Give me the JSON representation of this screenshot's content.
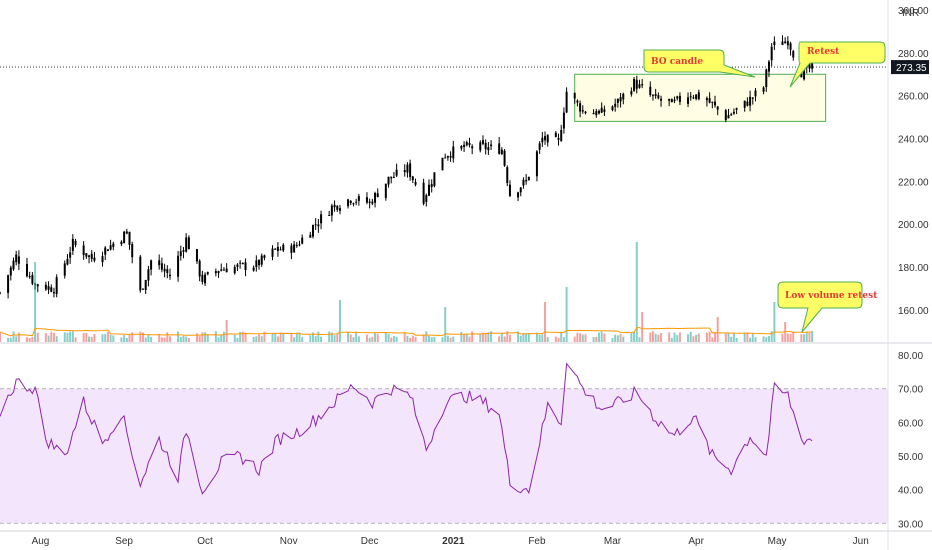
{
  "currency_label": "INR",
  "last_price": "273.35",
  "colors": {
    "up": "#26a69a",
    "down": "#ef5350",
    "candle": "#000000",
    "rsi_line": "#8e24aa",
    "rsi_band": "#f3e5fb",
    "box_fill": "#fffde3",
    "box_stroke": "#4caf50",
    "note_fill": "#ffff66",
    "note_stroke": "#4caf50",
    "note_text": "#e53935",
    "vol_ma": "#ff9800"
  },
  "annotations": {
    "bo_candle": "BO candle",
    "retest": "Retest",
    "low_volume_retest": "Low volume retest"
  },
  "chart_data": [
    {
      "type": "candlestick",
      "ylim": [
        145,
        300
      ],
      "yticks": [
        "300.00",
        "280.00",
        "260.00",
        "240.00",
        "220.00",
        "200.00",
        "180.00",
        "160.00"
      ],
      "ytick_values": [
        300,
        280,
        260,
        240,
        220,
        200,
        180,
        160
      ],
      "x_start": "2020-07-17",
      "x_end": "2021-05-14",
      "xlim": [
        "2020-07-17",
        "2021-06-10"
      ],
      "xticks": [
        {
          "label": "Aug",
          "date": "2020-08-01",
          "bold": false
        },
        {
          "label": "Sep",
          "date": "2020-09-01",
          "bold": false
        },
        {
          "label": "Oct",
          "date": "2020-10-01",
          "bold": false
        },
        {
          "label": "Nov",
          "date": "2020-11-01",
          "bold": false
        },
        {
          "label": "Dec",
          "date": "2020-12-01",
          "bold": false
        },
        {
          "label": "2021",
          "date": "2021-01-01",
          "bold": true
        },
        {
          "label": "Feb",
          "date": "2021-02-01",
          "bold": false
        },
        {
          "label": "Mar",
          "date": "2021-03-01",
          "bold": false
        },
        {
          "label": "Apr",
          "date": "2021-04-01",
          "bold": false
        },
        {
          "label": "May",
          "date": "2021-05-01",
          "bold": false
        },
        {
          "label": "Jun",
          "date": "2021-06-01",
          "bold": false
        }
      ],
      "close_anchors": [
        [
          "2020-07-17",
          168
        ],
        [
          "2020-07-23",
          185
        ],
        [
          "2020-07-30",
          172
        ],
        [
          "2020-08-06",
          170
        ],
        [
          "2020-08-13",
          191
        ],
        [
          "2020-08-20",
          184
        ],
        [
          "2020-08-27",
          190
        ],
        [
          "2020-09-02",
          196
        ],
        [
          "2020-09-07",
          168
        ],
        [
          "2020-09-11",
          183
        ],
        [
          "2020-09-18",
          176
        ],
        [
          "2020-09-24",
          193
        ],
        [
          "2020-09-30",
          174
        ],
        [
          "2020-10-06",
          179
        ],
        [
          "2020-10-13",
          180
        ],
        [
          "2020-10-20",
          181
        ],
        [
          "2020-10-27",
          188
        ],
        [
          "2020-11-03",
          189
        ],
        [
          "2020-11-10",
          199
        ],
        [
          "2020-11-17",
          208
        ],
        [
          "2020-11-24",
          212
        ],
        [
          "2020-12-01",
          210
        ],
        [
          "2020-12-08",
          221
        ],
        [
          "2020-12-15",
          226
        ],
        [
          "2020-12-21",
          212
        ],
        [
          "2020-12-28",
          232
        ],
        [
          "2021-01-05",
          236
        ],
        [
          "2021-01-11",
          236
        ],
        [
          "2021-01-19",
          235
        ],
        [
          "2021-01-22",
          214
        ],
        [
          "2021-01-28",
          220
        ],
        [
          "2021-02-03",
          240
        ],
        [
          "2021-02-09",
          238
        ],
        [
          "2021-02-12",
          262
        ],
        [
          "2021-02-18",
          253
        ],
        [
          "2021-02-25",
          252
        ],
        [
          "2021-03-03",
          257
        ],
        [
          "2021-03-09",
          266
        ],
        [
          "2021-03-16",
          259
        ],
        [
          "2021-03-23",
          256
        ],
        [
          "2021-03-30",
          261
        ],
        [
          "2021-04-05",
          258
        ],
        [
          "2021-04-12",
          250
        ],
        [
          "2021-04-19",
          256
        ],
        [
          "2021-04-26",
          264
        ],
        [
          "2021-04-29",
          283
        ],
        [
          "2021-05-05",
          286
        ],
        [
          "2021-05-10",
          271
        ],
        [
          "2021-05-14",
          273
        ]
      ],
      "breakout_box": {
        "x1": "2021-02-15",
        "x2": "2021-05-19",
        "y_low": 248,
        "y_high": 270
      },
      "last_price_value": 273.35
    },
    {
      "type": "bar",
      "name": "volume",
      "spikes": [
        {
          "date": "2020-07-30",
          "rel": 0.8,
          "color": "up"
        },
        {
          "date": "2021-02-12",
          "rel": 0.55,
          "color": "up"
        },
        {
          "date": "2021-02-04",
          "rel": 0.4,
          "color": "down"
        },
        {
          "date": "2021-03-10",
          "rel": 1.0,
          "color": "up"
        },
        {
          "date": "2021-03-12",
          "rel": 0.3,
          "color": "down"
        },
        {
          "date": "2020-11-20",
          "rel": 0.42,
          "color": "up"
        },
        {
          "date": "2020-12-29",
          "rel": 0.35,
          "color": "up"
        },
        {
          "date": "2020-10-09",
          "rel": 0.22,
          "color": "down"
        },
        {
          "date": "2021-04-09",
          "rel": 0.25,
          "color": "down"
        },
        {
          "date": "2021-04-30",
          "rel": 0.4,
          "color": "up"
        },
        {
          "date": "2021-05-04",
          "rel": 0.2,
          "color": "down"
        }
      ]
    },
    {
      "type": "line",
      "name": "RSI",
      "ylim": [
        28,
        83
      ],
      "yticks": [
        "80.00",
        "70.00",
        "60.00",
        "50.00",
        "40.00",
        "30.00"
      ],
      "ytick_values": [
        80,
        70,
        60,
        50,
        40,
        30
      ],
      "band": [
        30,
        70
      ],
      "points": [
        [
          "2020-07-17",
          63
        ],
        [
          "2020-07-23",
          72
        ],
        [
          "2020-07-30",
          70
        ],
        [
          "2020-08-03",
          55
        ],
        [
          "2020-08-10",
          50
        ],
        [
          "2020-08-17",
          66
        ],
        [
          "2020-08-24",
          54
        ],
        [
          "2020-08-31",
          63
        ],
        [
          "2020-09-07",
          42
        ],
        [
          "2020-09-14",
          55
        ],
        [
          "2020-09-21",
          44
        ],
        [
          "2020-09-24",
          58
        ],
        [
          "2020-09-30",
          40
        ],
        [
          "2020-10-07",
          48
        ],
        [
          "2020-10-14",
          50
        ],
        [
          "2020-10-21",
          46
        ],
        [
          "2020-10-28",
          55
        ],
        [
          "2020-11-04",
          57
        ],
        [
          "2020-11-11",
          61
        ],
        [
          "2020-11-18",
          66
        ],
        [
          "2020-11-25",
          71
        ],
        [
          "2020-12-02",
          66
        ],
        [
          "2020-12-09",
          70
        ],
        [
          "2020-12-16",
          68
        ],
        [
          "2020-12-22",
          52
        ],
        [
          "2020-12-29",
          66
        ],
        [
          "2021-01-05",
          68
        ],
        [
          "2021-01-12",
          66
        ],
        [
          "2021-01-18",
          63
        ],
        [
          "2021-01-22",
          42
        ],
        [
          "2021-01-29",
          40
        ],
        [
          "2021-02-05",
          65
        ],
        [
          "2021-02-10",
          60
        ],
        [
          "2021-02-12",
          79
        ],
        [
          "2021-02-18",
          70
        ],
        [
          "2021-02-25",
          64
        ],
        [
          "2021-03-04",
          66
        ],
        [
          "2021-03-10",
          69
        ],
        [
          "2021-03-17",
          61
        ],
        [
          "2021-03-24",
          56
        ],
        [
          "2021-03-31",
          62
        ],
        [
          "2021-04-07",
          50
        ],
        [
          "2021-04-14",
          46
        ],
        [
          "2021-04-21",
          56
        ],
        [
          "2021-04-27",
          50
        ],
        [
          "2021-04-30",
          70
        ],
        [
          "2021-05-05",
          68
        ],
        [
          "2021-05-10",
          55
        ],
        [
          "2021-05-14",
          55
        ]
      ]
    }
  ]
}
